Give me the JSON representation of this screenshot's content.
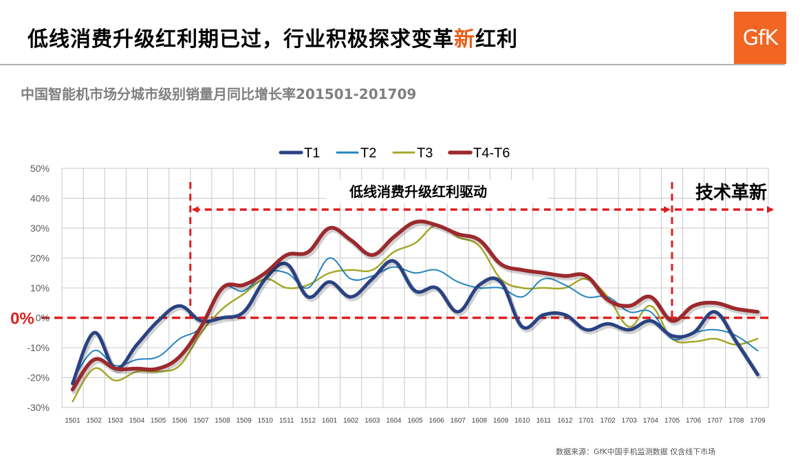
{
  "header": {
    "title_part1": "低线消费升级红利期已过，行业积极探求变革",
    "title_highlight": "新",
    "title_part2": "红利",
    "logo_text": "GfK",
    "highlight_color": "#e8601c",
    "logo_color": "#f26522"
  },
  "footer": {
    "source": "数据来源：GfK中国手机监测数据 仅含线下市场"
  },
  "chart_data": {
    "type": "line",
    "title": "中国智能机市场分城市级别销量月同比增长率201501-201709",
    "x": [
      "1501",
      "1502",
      "1503",
      "1504",
      "1505",
      "1506",
      "1507",
      "1508",
      "1509",
      "1510",
      "1511",
      "1512",
      "1601",
      "1602",
      "1603",
      "1604",
      "1605",
      "1606",
      "1607",
      "1608",
      "1609",
      "1610",
      "1611",
      "1612",
      "1701",
      "1702",
      "1703",
      "1704",
      "1705",
      "1706",
      "1707",
      "1708",
      "1709"
    ],
    "ylim": [
      -30,
      50
    ],
    "yticks": [
      "-30%",
      "-20%",
      "-10%",
      "0%",
      "10%",
      "20%",
      "30%",
      "40%",
      "50%"
    ],
    "grid": true,
    "legend_position": "top",
    "series": [
      {
        "name": "T1",
        "color": "#2a4282",
        "width": 5,
        "values": [
          -22,
          -5,
          -17,
          -9,
          -1,
          4,
          -1,
          0,
          2,
          13,
          18,
          7,
          12,
          7,
          13,
          19,
          9,
          10,
          2,
          11,
          12,
          -3,
          1,
          1,
          -4,
          -2,
          -4,
          -1,
          -6,
          -5,
          2,
          -8,
          -19
        ]
      },
      {
        "name": "T2",
        "color": "#2383bf",
        "width": 2,
        "values": [
          -21,
          -11,
          -16,
          -14,
          -13,
          -7,
          -3,
          10,
          9,
          15,
          15,
          10,
          20,
          13,
          14,
          17,
          15,
          16,
          12,
          10,
          10,
          7,
          13,
          11,
          7,
          7,
          2,
          2,
          -7,
          -5,
          -4,
          -6,
          -11
        ]
      },
      {
        "name": "T3",
        "color": "#a6a62a",
        "width": 2.5,
        "values": [
          -28,
          -17,
          -21,
          -18,
          -18,
          -16,
          -5,
          3,
          8,
          13,
          10,
          11,
          15,
          16,
          16,
          22,
          25,
          31,
          27,
          24,
          13,
          10,
          10,
          10,
          13,
          7,
          -3,
          4,
          -7,
          -8,
          -7,
          -9,
          -7
        ]
      },
      {
        "name": "T4-T6",
        "color": "#9b2a2e",
        "width": 5.5,
        "values": [
          -24,
          -14,
          -17,
          -17,
          -17,
          -13,
          -3,
          10,
          11,
          15,
          21,
          22,
          30,
          26,
          21,
          27,
          32,
          31,
          28,
          26,
          18,
          16,
          15,
          14,
          14,
          6,
          4,
          7,
          -1,
          4,
          5,
          3,
          2
        ]
      }
    ],
    "annotations": [
      {
        "text": "低线消费升级红利驱动",
        "from": "1507",
        "to": "1705"
      },
      {
        "text": "技术革新",
        "from": "1705",
        "to": "1709"
      },
      {
        "text": "0%",
        "y": 0
      }
    ],
    "annotation_color": "#e01e1e"
  }
}
